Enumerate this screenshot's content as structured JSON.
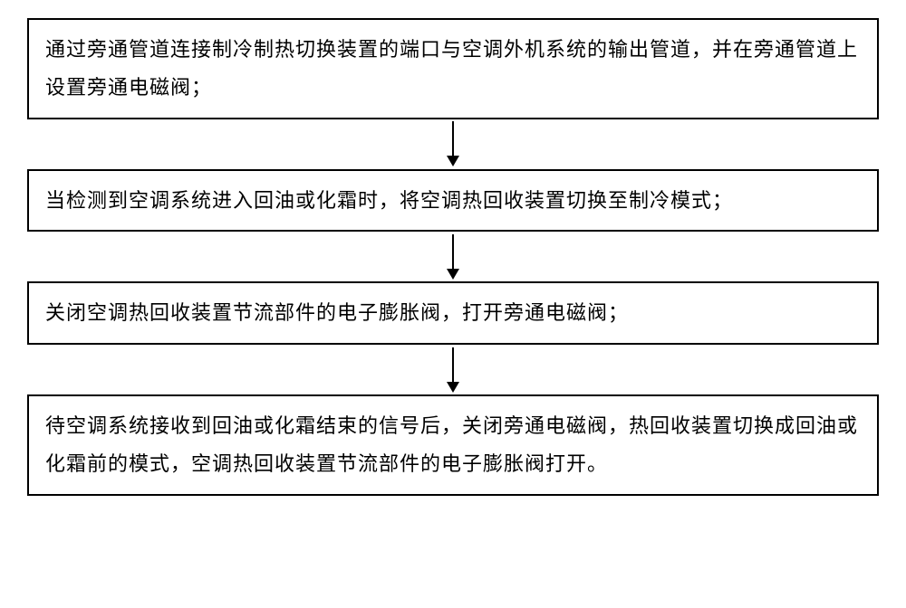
{
  "flowchart": {
    "type": "flowchart",
    "direction": "vertical",
    "box_border_color": "#000000",
    "box_border_width": 2,
    "box_background": "#ffffff",
    "text_color": "#000000",
    "text_fontsize": 22,
    "font_family": "KaiTi",
    "arrow_color": "#000000",
    "arrow_line_width": 2,
    "arrow_height": 55,
    "page_background": "#ffffff",
    "steps": [
      {
        "id": "step1",
        "text": "通过旁通管道连接制冷制热切换装置的端口与空调外机系统的输出管道，并在旁通管道上设置旁通电磁阀；"
      },
      {
        "id": "step2",
        "text": "当检测到空调系统进入回油或化霜时，将空调热回收装置切换至制冷模式；"
      },
      {
        "id": "step3",
        "text": "关闭空调热回收装置节流部件的电子膨胀阀，打开旁通电磁阀；"
      },
      {
        "id": "step4",
        "text": "待空调系统接收到回油或化霜结束的信号后，关闭旁通电磁阀，热回收装置切换成回油或化霜前的模式，空调热回收装置节流部件的电子膨胀阀打开。"
      }
    ]
  }
}
